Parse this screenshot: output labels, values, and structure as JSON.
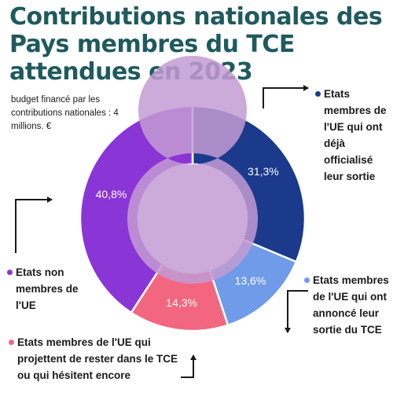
{
  "colors": {
    "title": "#1f5a5d",
    "text": "#1a1a1a",
    "inner_ring": "#c39bd3"
  },
  "title": "Contributions nationales des Pays membres du TCE attendues en 2023",
  "subtitle": "budget financé par les contributions nationales : 4 millions. €",
  "chart_data": {
    "type": "pie",
    "donut": true,
    "title": "Contributions nationales des Pays membres du TCE attendues en 2023",
    "slices": [
      {
        "label": "Etats membres de l'UE qui ont déjà officialisé leur sortie",
        "value": 31.3,
        "display": "31,3%",
        "color": "#1b3a8c"
      },
      {
        "label": "Etats membres de l'UE qui ont annoncé leur sortie du TCE",
        "value": 13.6,
        "display": "13,6%",
        "color": "#6f9be8"
      },
      {
        "label": "Etats membres de l'UE qui projettent de rester dans le TCE ou qui hésitent encore",
        "value": 14.3,
        "display": "14,3%",
        "color": "#f2677f"
      },
      {
        "label": "Etats non membres de l'UE",
        "value": 40.8,
        "display": "40,8%",
        "color": "#8a35d6"
      }
    ]
  },
  "legend": {
    "sorties": "Etats membres de l'UE qui ont déjà officialisé leur sortie",
    "annonce": "Etats membres de l'UE qui ont annoncé leur sortie du TCE",
    "rester": "Etats membres de l'UE qui projettent de rester dans le TCE ou qui hésitent encore",
    "non_ue": "Etats non membres de l'UE"
  }
}
